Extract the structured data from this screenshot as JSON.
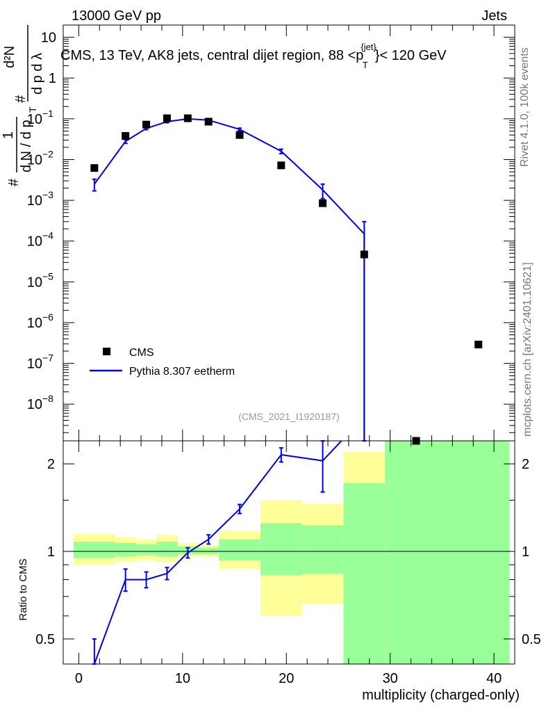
{
  "header": {
    "left": "13000 GeV pp",
    "right": "Jets"
  },
  "side_text": {
    "rivet": "Rivet 4.1.0,  100k events",
    "mcplots": "mcplots.cern.ch [arXiv:2401.10621]"
  },
  "analysis_ref": "(CMS_2021_I1920187)",
  "main_ylabel": {
    "hash1": "#",
    "one": "1",
    "denom": "#",
    "dN_dpT": "d N / d p",
    "sub_T": "T",
    "num": "#",
    "d2N": "d²N",
    "dpT_dlambda": "d p   d λ"
  },
  "ratio_ylabel": "Ratio to CMS",
  "xlabel": "multiplicity (charged-only)",
  "colors": {
    "mc_line": "#0000ee",
    "band_inner": "#99ff99",
    "band_outer": "#ffff99",
    "data_marker": "#000000"
  },
  "chart_data": [
    {
      "type": "line",
      "title": "CMS, 13 TeV, AK8 jets, central dijet region, 88 <p_T^{jet}< 120 GeV",
      "title_text": "CMS, 13 TeV, AK8 jets, central dijet region, 88 <",
      "title_p": "p",
      "title_sup": "{jet}",
      "title_sub": "T",
      "title_end": "}< 120 GeV",
      "yscale": "log",
      "ylim_log10": [
        -8.9,
        1.3
      ],
      "xlim": [
        -1.5,
        42
      ],
      "y_ticks": [
        {
          "exp": 1,
          "label": "10"
        },
        {
          "exp": 0,
          "label": "1"
        },
        {
          "exp": -1,
          "label": "10",
          "sup": "−1"
        },
        {
          "exp": -2,
          "label": "10",
          "sup": "−2"
        },
        {
          "exp": -3,
          "label": "10",
          "sup": "−3"
        },
        {
          "exp": -4,
          "label": "10",
          "sup": "−4"
        },
        {
          "exp": -5,
          "label": "10",
          "sup": "−5"
        },
        {
          "exp": -6,
          "label": "10",
          "sup": "−6"
        },
        {
          "exp": -7,
          "label": "10",
          "sup": "−7"
        },
        {
          "exp": -8,
          "label": "10",
          "sup": "−8"
        }
      ],
      "legend": {
        "position": "bottom-left",
        "entries": [
          "CMS",
          "Pythia 8.307 eetherm"
        ]
      },
      "series": [
        {
          "name": "CMS",
          "style": "square-markers",
          "x": [
            1.5,
            4.5,
            6.5,
            8.5,
            10.5,
            12.5,
            15.5,
            19.5,
            23.5,
            27.5,
            32.5,
            38.5
          ],
          "y": [
            0.0062,
            0.038,
            0.072,
            0.103,
            0.103,
            0.085,
            0.04,
            0.0072,
            0.00085,
            4.7e-05,
            1e-09,
            2.9e-07
          ]
        },
        {
          "name": "Pythia 8.307 eetherm",
          "style": "line-with-errors",
          "x": [
            1.5,
            4.5,
            6.5,
            8.5,
            10.5,
            12.5,
            15.5,
            19.5,
            23.5,
            27.5
          ],
          "y": [
            0.0025,
            0.028,
            0.058,
            0.085,
            0.1,
            0.093,
            0.055,
            0.016,
            0.0018,
            0.00015
          ],
          "err_low": [
            0.0008,
            0.003,
            0.004,
            0.005,
            0.005,
            0.005,
            0.004,
            0.002,
            0.0007,
            0.00015
          ],
          "err_high": [
            0.0008,
            0.003,
            0.004,
            0.005,
            0.005,
            0.005,
            0.004,
            0.002,
            0.0007,
            0.00015
          ]
        }
      ]
    },
    {
      "type": "line",
      "title": "Ratio to CMS",
      "ylabel": "Ratio to CMS",
      "xlabel": "multiplicity (charged-only)",
      "yscale": "log",
      "ylim": [
        0.41,
        2.4
      ],
      "xlim": [
        -1.5,
        42
      ],
      "y_ticks": [
        0.5,
        1,
        2
      ],
      "y_tick_labels": [
        "0.5",
        "1",
        "2"
      ],
      "x_ticks": [
        0,
        10,
        20,
        30,
        40
      ],
      "x_tick_labels": [
        "0",
        "10",
        "20",
        "30",
        "40"
      ],
      "bands": [
        {
          "x0": -0.5,
          "x1": 3.5,
          "inner_lo": 0.95,
          "inner_hi": 1.08,
          "outer_lo": 0.9,
          "outer_hi": 1.15
        },
        {
          "x0": 3.5,
          "x1": 5.5,
          "inner_lo": 0.96,
          "inner_hi": 1.07,
          "outer_lo": 0.92,
          "outer_hi": 1.12
        },
        {
          "x0": 5.5,
          "x1": 7.5,
          "inner_lo": 0.97,
          "inner_hi": 1.06,
          "outer_lo": 0.93,
          "outer_hi": 1.1
        },
        {
          "x0": 7.5,
          "x1": 9.5,
          "inner_lo": 0.96,
          "inner_hi": 1.08,
          "outer_lo": 0.92,
          "outer_hi": 1.14
        },
        {
          "x0": 9.5,
          "x1": 11.5,
          "inner_lo": 0.98,
          "inner_hi": 1.04,
          "outer_lo": 0.96,
          "outer_hi": 1.07
        },
        {
          "x0": 11.5,
          "x1": 13.5,
          "inner_lo": 0.98,
          "inner_hi": 1.03,
          "outer_lo": 0.96,
          "outer_hi": 1.05
        },
        {
          "x0": 13.5,
          "x1": 17.5,
          "inner_lo": 0.93,
          "inner_hi": 1.1,
          "outer_lo": 0.87,
          "outer_hi": 1.18
        },
        {
          "x0": 17.5,
          "x1": 21.5,
          "inner_lo": 0.83,
          "inner_hi": 1.25,
          "outer_lo": 0.6,
          "outer_hi": 1.5
        },
        {
          "x0": 21.5,
          "x1": 25.5,
          "inner_lo": 0.84,
          "inner_hi": 1.23,
          "outer_lo": 0.66,
          "outer_hi": 1.46
        },
        {
          "x0": 25.5,
          "x1": 29.5,
          "inner_lo": 0.41,
          "inner_hi": 1.72,
          "outer_lo": 0.41,
          "outer_hi": 2.2
        },
        {
          "x0": 29.5,
          "x1": 41.5,
          "inner_lo": 0.41,
          "inner_hi": 2.4,
          "outer_lo": 0.41,
          "outer_hi": 2.4
        }
      ],
      "series": [
        {
          "name": "Pythia 8.307 eetherm / CMS",
          "x": [
            1.5,
            4.5,
            6.5,
            8.5,
            10.5,
            12.5,
            15.5,
            19.5,
            23.5,
            25.3
          ],
          "y": [
            0.4,
            0.8,
            0.8,
            0.84,
            0.99,
            1.1,
            1.4,
            2.15,
            2.05,
            2.4
          ],
          "err_low": [
            0.1,
            0.07,
            0.05,
            0.04,
            0.04,
            0.04,
            0.05,
            0.12,
            0.45,
            0
          ],
          "err_high": [
            0.1,
            0.07,
            0.05,
            0.04,
            0.04,
            0.04,
            0.05,
            0.12,
            0.45,
            0
          ]
        }
      ]
    }
  ]
}
